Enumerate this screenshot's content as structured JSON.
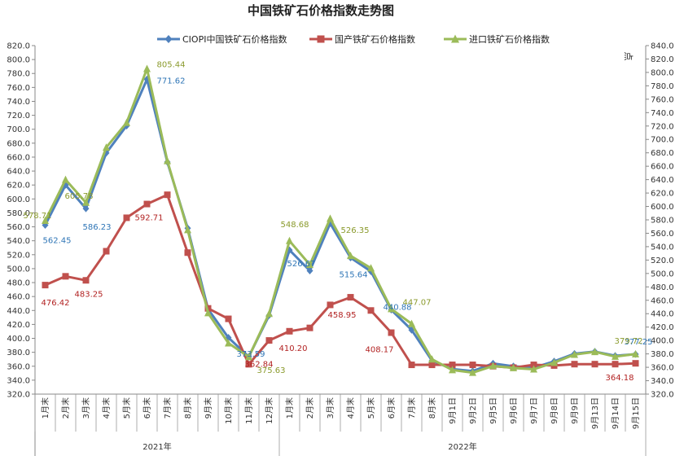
{
  "chart_data": {
    "type": "line",
    "title": "中国铁矿石价格指数走势图",
    "right_axis_unit": "点",
    "ylim": [
      320,
      820
    ],
    "y_ticks": [
      "320.0",
      "340.0",
      "360.0",
      "380.0",
      "400.0",
      "420.0",
      "440.0",
      "460.0",
      "480.0",
      "500.0",
      "520.0",
      "540.0",
      "560.0",
      "580.0",
      "600.0",
      "620.0",
      "640.0",
      "660.0",
      "680.0",
      "700.0",
      "720.0",
      "740.0",
      "760.0",
      "780.0",
      "800.0",
      "820.0"
    ],
    "y2lim": [
      320,
      840
    ],
    "y2_ticks": [
      "320.0",
      "340.0",
      "360.0",
      "380.0",
      "400.0",
      "420.0",
      "440.0",
      "460.0",
      "480.0",
      "500.0",
      "520.0",
      "540.0",
      "560.0",
      "580.0",
      "600.0",
      "620.0",
      "640.0",
      "660.0",
      "680.0",
      "700.0",
      "720.0",
      "740.0",
      "760.0",
      "780.0",
      "800.0",
      "820.0",
      "840.0"
    ],
    "grid": false,
    "legend_position": "top",
    "categories": [
      "1月末",
      "2月末",
      "3月末",
      "4月末",
      "5月末",
      "6月末",
      "7月末",
      "8月末",
      "9月末",
      "10月末",
      "11月末",
      "12月末",
      "1月末",
      "2月末",
      "3月末",
      "4月末",
      "5月末",
      "6月末",
      "7月末",
      "8月末",
      "9月1日",
      "9月2日",
      "9月5日",
      "9月6日",
      "9月7日",
      "9月8日",
      "9月9日",
      "9月13日",
      "9月14日",
      "9月15日"
    ],
    "groups": [
      {
        "label": "2021年",
        "count": 12
      },
      {
        "label": "2022年",
        "count": 18
      }
    ],
    "series": [
      {
        "name": "CIOPI中国铁矿石价格指数",
        "color": "#4F81BD",
        "marker": "diamond",
        "axis": "left",
        "values": [
          562.45,
          620,
          586.23,
          666,
          705,
          771.62,
          653,
          558,
          442,
          401,
          373.59,
          433,
          526.67,
          497,
          565,
          515.64,
          496,
          440.88,
          412,
          368,
          356,
          353,
          364,
          360,
          358,
          367,
          378,
          381,
          375,
          377.25
        ],
        "labels": [
          {
            "i": 0,
            "text": "562.45"
          },
          {
            "i": 2,
            "text": "586.23"
          },
          {
            "i": 5,
            "text": "771.62"
          },
          {
            "i": 10,
            "text": "373.59"
          },
          {
            "i": 12,
            "text": "526.67"
          },
          {
            "i": 15,
            "text": "515.64"
          },
          {
            "i": 17,
            "text": "440.88"
          },
          {
            "i": 29,
            "text": "377.25"
          }
        ]
      },
      {
        "name": "国产铁矿石价格指数",
        "color": "#C0504D",
        "marker": "square",
        "axis": "left",
        "values": [
          476.42,
          489,
          483.25,
          525,
          573,
          592.71,
          606,
          523,
          443,
          428,
          362.84,
          397,
          410.2,
          415,
          448,
          458.95,
          440,
          408.17,
          362,
          362,
          362,
          362,
          360,
          358,
          362,
          361,
          363,
          363,
          363,
          364.18
        ],
        "labels": [
          {
            "i": 0,
            "text": "476.42"
          },
          {
            "i": 2,
            "text": "483.25"
          },
          {
            "i": 5,
            "text": "592.71"
          },
          {
            "i": 10,
            "text": "362.84"
          },
          {
            "i": 12,
            "text": "410.20"
          },
          {
            "i": 15,
            "text": "458.95"
          },
          {
            "i": 17,
            "text": "408.17"
          },
          {
            "i": 29,
            "text": "364.18"
          }
        ]
      },
      {
        "name": "进口铁矿石价格指数",
        "color": "#9BBB59",
        "marker": "triangle",
        "axis": "right",
        "values": [
          578.71,
          640,
          605.78,
          688,
          725,
          805.44,
          668,
          565,
          441,
          396,
          375.63,
          440,
          548.68,
          513,
          582,
          526.35,
          508,
          447.07,
          425,
          372,
          356,
          352,
          362,
          359,
          357,
          367,
          379,
          383,
          376,
          379.72
        ],
        "labels": [
          {
            "i": 0,
            "text": "578.71"
          },
          {
            "i": 2,
            "text": "605.78"
          },
          {
            "i": 5,
            "text": "805.44"
          },
          {
            "i": 10,
            "text": "375.63"
          },
          {
            "i": 12,
            "text": "548.68"
          },
          {
            "i": 15,
            "text": "526.35"
          },
          {
            "i": 17,
            "text": "447.07"
          },
          {
            "i": 29,
            "text": "379.72"
          }
        ]
      }
    ]
  }
}
